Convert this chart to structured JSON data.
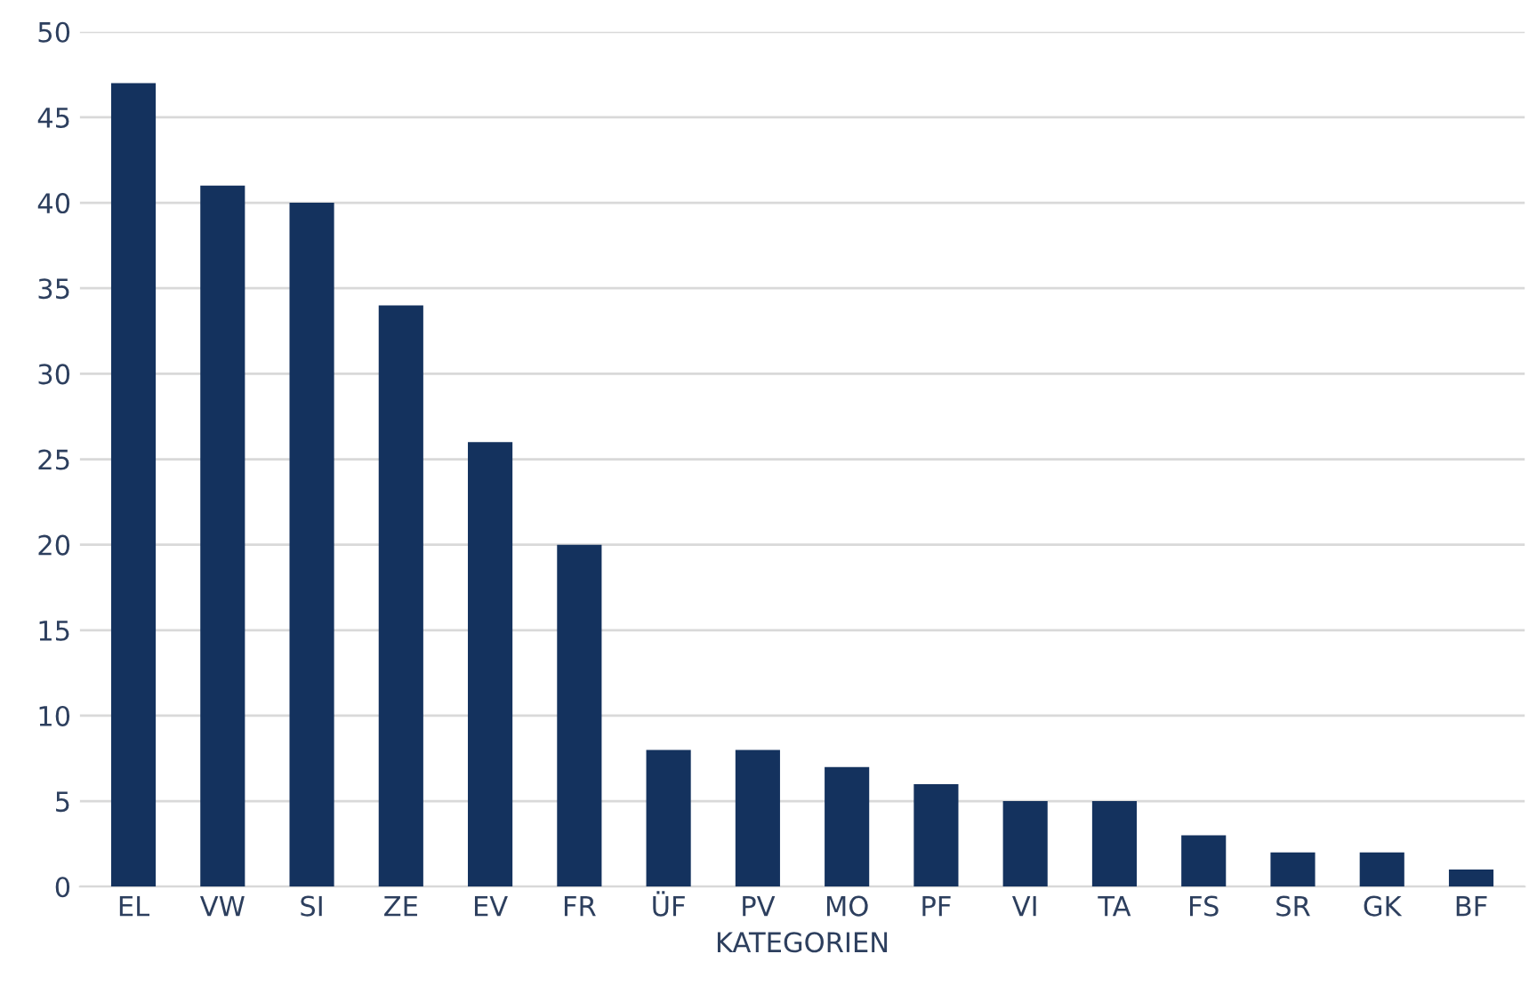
{
  "chart_data": {
    "type": "bar",
    "xlabel": "KATEGORIEN",
    "categories": [
      "EL",
      "VW",
      "SI",
      "ZE",
      "EV",
      "FR",
      "ÜF",
      "PV",
      "MO",
      "PF",
      "VI",
      "TA",
      "FS",
      "SR",
      "GK",
      "BF"
    ],
    "values": [
      47,
      41,
      40,
      34,
      26,
      20,
      8,
      8,
      7,
      6,
      5,
      5,
      3,
      2,
      2,
      1
    ],
    "color": "#14325e",
    "ylim": [
      0,
      50
    ],
    "yticks": [
      0,
      5,
      10,
      15,
      20,
      25,
      30,
      35,
      40,
      45,
      50
    ],
    "grid": "y"
  }
}
